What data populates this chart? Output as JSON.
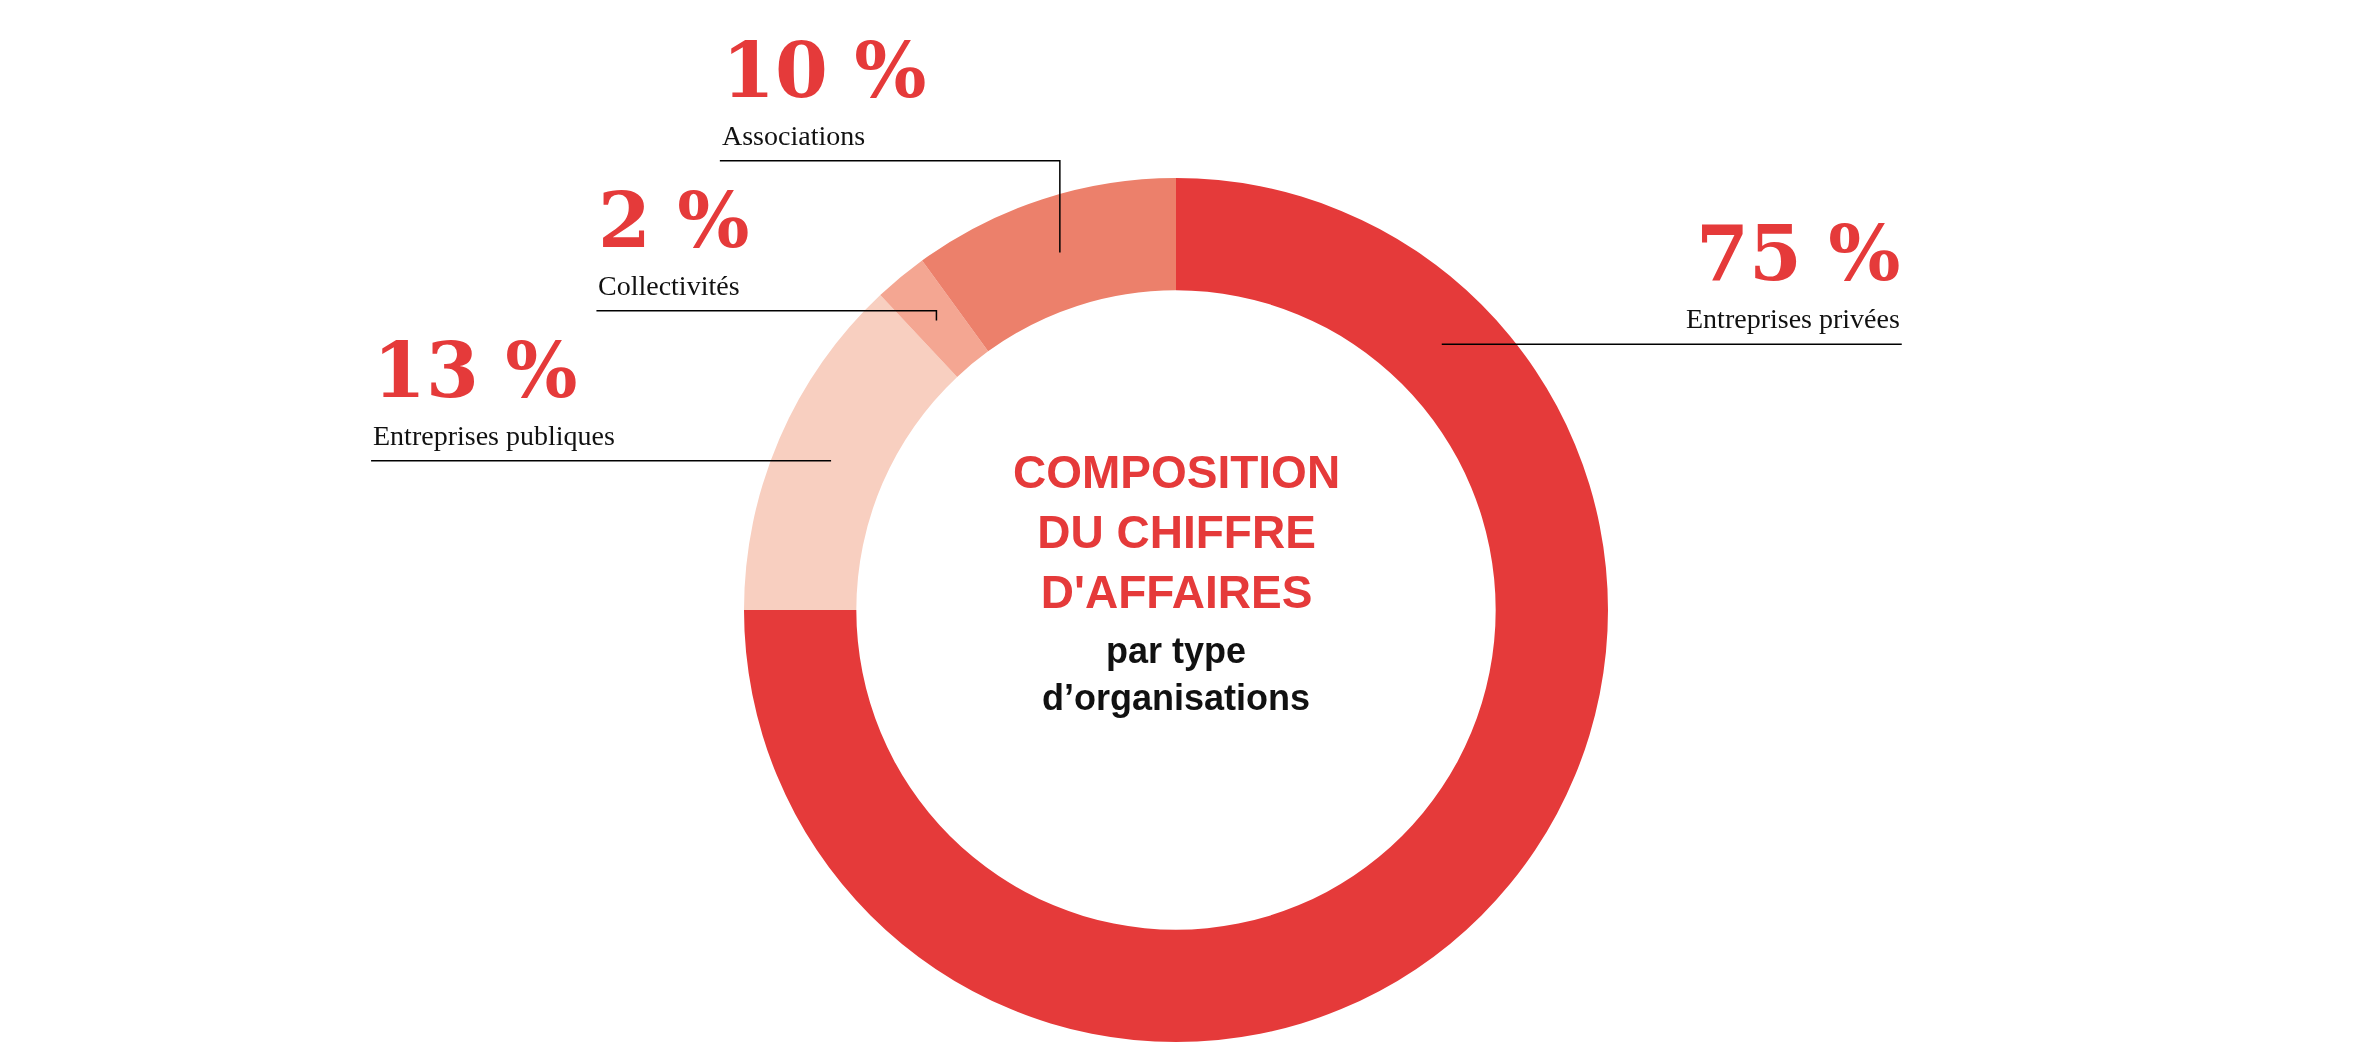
{
  "chart_data": {
    "type": "donut",
    "title": "COMPOSITION DU CHIFFRE D'AFFAIRES",
    "subtitle": "par type d’organisations",
    "categories": [
      "Entreprises privées",
      "Entreprises publiques",
      "Collectivités",
      "Associations"
    ],
    "values": [
      75,
      13,
      2,
      10
    ],
    "colors": [
      "#e53a3a",
      "#f8cfc0",
      "#f4a692",
      "#ec806b"
    ],
    "value_labels": [
      "75 %",
      "13 %",
      "2 %",
      "10 %"
    ]
  }
}
